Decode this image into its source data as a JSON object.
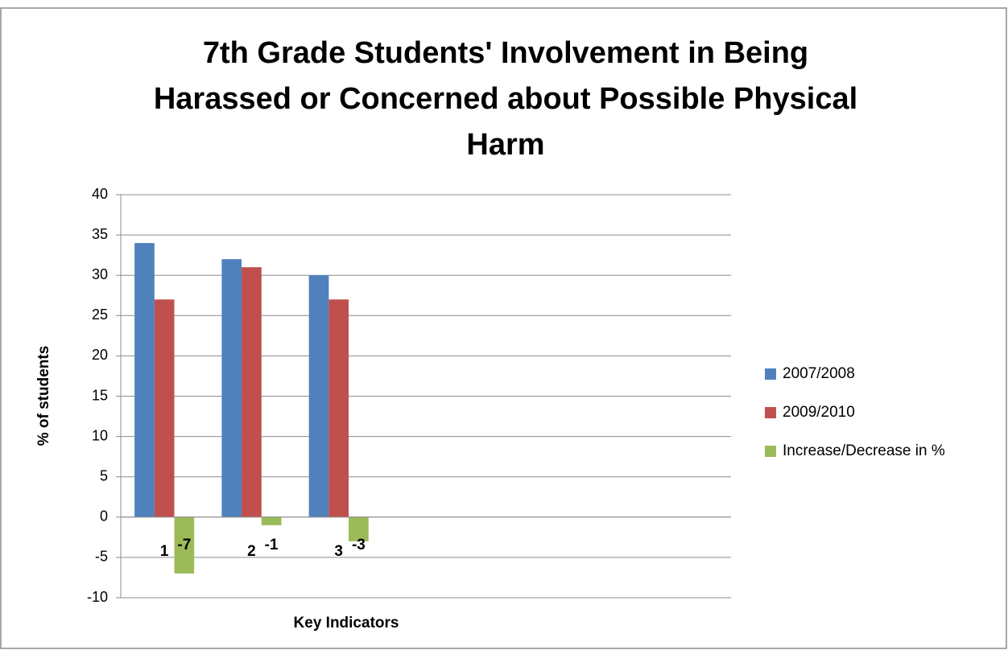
{
  "chart_data": {
    "type": "bar",
    "title": [
      "7th Grade Students' Involvement in Being",
      "Harassed or Concerned about Possible Physical",
      "Harm"
    ],
    "x_label": "Key Indicators",
    "y_label": "% of students",
    "categories": [
      "1",
      "2",
      "3",
      null,
      null,
      null,
      null
    ],
    "series": [
      {
        "name": "2007/2008",
        "color": "#4f81bd",
        "values": [
          34,
          32,
          30,
          null,
          null,
          null,
          null
        ]
      },
      {
        "name": "2009/2010",
        "color": "#c0504d",
        "values": [
          27,
          31,
          27,
          null,
          null,
          null,
          null
        ]
      },
      {
        "name": "Increase/Decrease in %",
        "color": "#9bbb59",
        "values": [
          -7,
          -1,
          -3,
          null,
          null,
          null,
          null
        ]
      }
    ],
    "data_labels_series": 2,
    "ylim": [
      -10,
      40
    ],
    "yticks": [
      40,
      35,
      30,
      25,
      20,
      15,
      10,
      5,
      0,
      -5,
      -10
    ],
    "grid": true,
    "legend": "right"
  }
}
